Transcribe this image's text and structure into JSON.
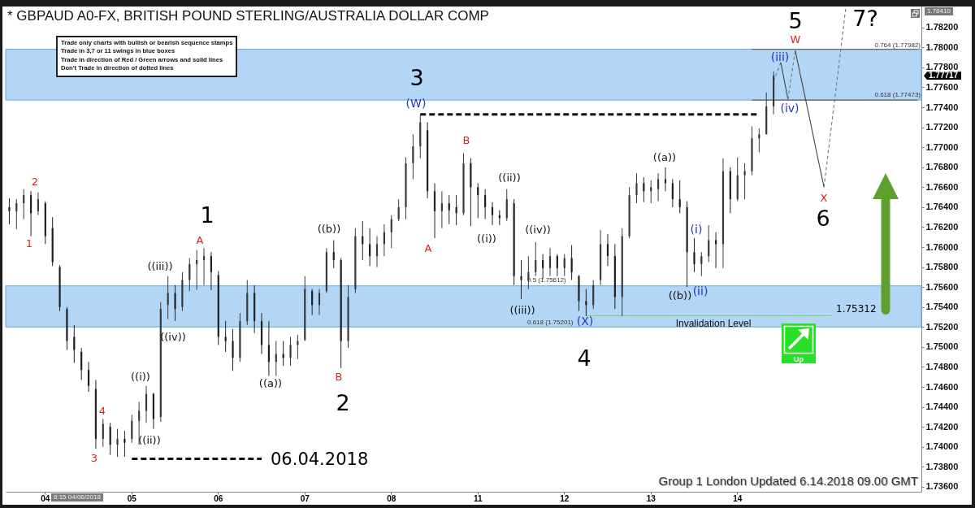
{
  "chart_data": {
    "type": "candlestick",
    "title": "* GBPAUD A0-FX, BRITISH POUND STERLING/AUSTRALIA DOLLAR COMP",
    "categories": [
      null,
      null,
      null,
      null,
      null,
      "04",
      null,
      null,
      null,
      null,
      null,
      null,
      null,
      null,
      null,
      null,
      null,
      "05",
      null,
      null,
      null,
      null,
      null,
      null,
      null,
      null,
      null,
      null,
      null,
      "06",
      null,
      null,
      null,
      null,
      null,
      null,
      null,
      null,
      null,
      null,
      null,
      "07",
      null,
      null,
      null,
      null,
      null,
      null,
      null,
      null,
      null,
      null,
      null,
      "08",
      null,
      null,
      null,
      null,
      null,
      null,
      null,
      null,
      null,
      null,
      null,
      "11",
      null,
      null,
      null,
      null,
      null,
      null,
      null,
      null,
      null,
      null,
      null,
      "12",
      null,
      null,
      null,
      null,
      null,
      null,
      null,
      null,
      null,
      null,
      null,
      "13",
      null,
      null,
      null,
      null,
      null,
      null,
      null,
      null,
      null,
      null,
      null,
      "14",
      null,
      null,
      null,
      null,
      null,
      null,
      null,
      null,
      null,
      null,
      null,
      null,
      null,
      null,
      null,
      null,
      null,
      null,
      null,
      null,
      null,
      null,
      null,
      null,
      null
    ],
    "ohlc": [
      [
        1.764,
        1.7649,
        1.7623,
        1.7636
      ],
      [
        1.7636,
        1.7648,
        1.7618,
        1.7644
      ],
      [
        1.7644,
        1.7658,
        1.7628,
        1.7652
      ],
      [
        1.7652,
        1.7656,
        1.7611,
        1.7634
      ],
      [
        1.7636,
        1.7655,
        1.7632,
        1.7648
      ],
      [
        1.7644,
        1.7646,
        1.7603,
        1.7611
      ],
      [
        1.7619,
        1.763,
        1.7581,
        1.7585
      ],
      [
        1.758,
        1.7582,
        1.7536,
        1.754
      ],
      [
        1.7538,
        1.754,
        1.7497,
        1.7506
      ],
      [
        1.751,
        1.7522,
        1.7484,
        1.7497
      ],
      [
        1.7495,
        1.7499,
        1.7467,
        1.7477
      ],
      [
        1.7477,
        1.7485,
        1.7455,
        1.7461
      ],
      [
        1.7458,
        1.7467,
        1.7398,
        1.7408
      ],
      [
        1.7408,
        1.7428,
        1.74,
        1.7423
      ],
      [
        1.742,
        1.7424,
        1.7392,
        1.7402
      ],
      [
        1.7402,
        1.7418,
        1.739,
        1.7408
      ],
      [
        1.7408,
        1.7416,
        1.739,
        1.7404
      ],
      [
        1.7408,
        1.7432,
        1.7404,
        1.7426
      ],
      [
        1.7426,
        1.7445,
        1.7402,
        1.7436
      ],
      [
        1.7436,
        1.7461,
        1.7424,
        1.7453
      ],
      [
        1.7453,
        1.7454,
        1.7418,
        1.7428
      ],
      [
        1.743,
        1.7545,
        1.7425,
        1.7538
      ],
      [
        1.7542,
        1.7571,
        1.7528,
        1.7554
      ],
      [
        1.7554,
        1.7562,
        1.7526,
        1.7538
      ],
      [
        1.754,
        1.7575,
        1.7536,
        1.7567
      ],
      [
        1.7567,
        1.7589,
        1.7556,
        1.7583
      ],
      [
        1.7583,
        1.7597,
        1.7557,
        1.7587
      ],
      [
        1.7587,
        1.7599,
        1.7562,
        1.7591
      ],
      [
        1.7591,
        1.7595,
        1.7557,
        1.7575
      ],
      [
        1.7572,
        1.7576,
        1.7502,
        1.751
      ],
      [
        1.751,
        1.7526,
        1.7495,
        1.7506
      ],
      [
        1.7506,
        1.7518,
        1.7476,
        1.7489
      ],
      [
        1.7489,
        1.7534,
        1.7485,
        1.7526
      ],
      [
        1.7526,
        1.7567,
        1.7522,
        1.7554
      ],
      [
        1.7554,
        1.7562,
        1.7514,
        1.7526
      ],
      [
        1.7526,
        1.7534,
        1.7493,
        1.7502
      ],
      [
        1.7502,
        1.7526,
        1.7471,
        1.7485
      ],
      [
        1.7485,
        1.7506,
        1.7471,
        1.7493
      ],
      [
        1.7493,
        1.7506,
        1.7481,
        1.7489
      ],
      [
        1.7489,
        1.751,
        1.7481,
        1.7502
      ],
      [
        1.7502,
        1.7512,
        1.7488,
        1.7506
      ],
      [
        1.7507,
        1.7571,
        1.7506,
        1.7558
      ],
      [
        1.7556,
        1.7558,
        1.7532,
        1.7542
      ],
      [
        1.7542,
        1.7558,
        1.7532,
        1.7554
      ],
      [
        1.7556,
        1.7599,
        1.7554,
        1.7595
      ],
      [
        1.7595,
        1.7607,
        1.7579,
        1.7587
      ],
      [
        1.7587,
        1.7589,
        1.7479,
        1.7506
      ],
      [
        1.7506,
        1.7562,
        1.7499,
        1.755
      ],
      [
        1.7558,
        1.7619,
        1.7554,
        1.7611
      ],
      [
        1.7611,
        1.7626,
        1.7587,
        1.7603
      ],
      [
        1.7603,
        1.7619,
        1.7581,
        1.7591
      ],
      [
        1.7591,
        1.7611,
        1.758,
        1.7603
      ],
      [
        1.7603,
        1.7623,
        1.7591,
        1.7615
      ],
      [
        1.7615,
        1.7632,
        1.7599,
        1.7628
      ],
      [
        1.7628,
        1.7648,
        1.7626,
        1.764
      ],
      [
        1.764,
        1.769,
        1.7628,
        1.7684
      ],
      [
        1.7684,
        1.7713,
        1.7668,
        1.7701
      ],
      [
        1.7701,
        1.7733,
        1.7689,
        1.7725
      ],
      [
        1.7717,
        1.7725,
        1.7649,
        1.7656
      ],
      [
        1.7656,
        1.7664,
        1.7609,
        1.7636
      ],
      [
        1.7636,
        1.7656,
        1.7619,
        1.7644
      ],
      [
        1.7644,
        1.7652,
        1.7623,
        1.7637
      ],
      [
        1.764,
        1.7652,
        1.7622,
        1.7634
      ],
      [
        1.7634,
        1.7694,
        1.7632,
        1.7684
      ],
      [
        1.7684,
        1.7689,
        1.7621,
        1.766
      ],
      [
        1.766,
        1.7664,
        1.7629,
        1.7652
      ],
      [
        1.7652,
        1.7658,
        1.7628,
        1.764
      ],
      [
        1.764,
        1.7645,
        1.7622,
        1.7632
      ],
      [
        1.7632,
        1.7637,
        1.7622,
        1.7629
      ],
      [
        1.7629,
        1.7658,
        1.7626,
        1.7648
      ],
      [
        1.7644,
        1.7648,
        1.7562,
        1.7571
      ],
      [
        1.7571,
        1.7587,
        1.7548,
        1.7567
      ],
      [
        1.7567,
        1.7591,
        1.7558,
        1.7575
      ],
      [
        1.7575,
        1.7605,
        1.7571,
        1.7587
      ],
      [
        1.7587,
        1.7593,
        1.7568,
        1.7579
      ],
      [
        1.7579,
        1.7599,
        1.7571,
        1.7591
      ],
      [
        1.7591,
        1.7593,
        1.7571,
        1.7579
      ],
      [
        1.7579,
        1.7593,
        1.7571,
        1.7589
      ],
      [
        1.7589,
        1.7602,
        1.7567,
        1.7575
      ],
      [
        1.7571,
        1.7572,
        1.7536,
        1.7546
      ],
      [
        1.7546,
        1.7558,
        1.7531,
        1.7542
      ],
      [
        1.7542,
        1.7567,
        1.7538,
        1.7562
      ],
      [
        1.7567,
        1.7617,
        1.7562,
        1.7603
      ],
      [
        1.7603,
        1.7613,
        1.7581,
        1.7591
      ],
      [
        1.7591,
        1.7603,
        1.7538,
        1.755
      ],
      [
        1.755,
        1.7619,
        1.7531,
        1.7611
      ],
      [
        1.7611,
        1.766,
        1.7609,
        1.7652
      ],
      [
        1.7652,
        1.7674,
        1.7644,
        1.7664
      ],
      [
        1.7664,
        1.767,
        1.7645,
        1.7656
      ],
      [
        1.7656,
        1.7667,
        1.7644,
        1.766
      ],
      [
        1.7658,
        1.7674,
        1.7646,
        1.7668
      ],
      [
        1.7668,
        1.768,
        1.7656,
        1.7664
      ],
      [
        1.7664,
        1.7668,
        1.764,
        1.7648
      ],
      [
        1.7648,
        1.7667,
        1.7634,
        1.764
      ],
      [
        1.764,
        1.7646,
        1.756,
        1.7595
      ],
      [
        1.7595,
        1.7609,
        1.7575,
        1.7583
      ],
      [
        1.7583,
        1.7595,
        1.7571,
        1.7591
      ],
      [
        1.7591,
        1.7622,
        1.7585,
        1.7607
      ],
      [
        1.7607,
        1.7615,
        1.7579,
        1.7603
      ],
      [
        1.7603,
        1.7689,
        1.7579,
        1.7676
      ],
      [
        1.7676,
        1.768,
        1.7634,
        1.7648
      ],
      [
        1.7648,
        1.769,
        1.7646,
        1.7672
      ],
      [
        1.7672,
        1.7684,
        1.7648,
        1.7676
      ],
      [
        1.7676,
        1.7721,
        1.7672,
        1.7709
      ],
      [
        1.7709,
        1.7719,
        1.7695,
        1.7713
      ],
      [
        1.7713,
        1.7755,
        1.7713,
        1.7741
      ],
      [
        1.7741,
        1.7776,
        1.7733,
        1.77717
      ],
      null,
      null,
      null,
      null,
      null,
      null,
      null,
      null,
      null,
      null,
      null,
      null,
      null,
      null,
      null,
      null,
      null,
      null,
      null,
      null
    ],
    "colors": [
      "#202020",
      "#3a3a3a",
      "#3a3a3a",
      "#202020",
      "#3a3a3a",
      "#202020",
      "#202020",
      "#202020",
      "#202020",
      "#202020",
      "#202020",
      "#202020",
      "#202020",
      "#3a3a3a",
      "#202020",
      "#3a3a3a",
      "#202020",
      "#3a3a3a",
      "#3a3a3a",
      "#3a3a3a",
      "#202020",
      "#3a3a3a",
      "#3a3a3a",
      "#202020",
      "#3a3a3a",
      "#3a3a3a",
      "#3a3a3a",
      "#3a3a3a",
      "#202020",
      "#202020",
      "#202020",
      "#202020",
      "#3a3a3a",
      "#3a3a3a",
      "#202020",
      "#202020",
      "#202020",
      "#3a3a3a",
      "#202020",
      "#3a3a3a",
      "#3a3a3a",
      "#3a3a3a",
      "#202020",
      "#3a3a3a",
      "#3a3a3a",
      "#202020",
      "#202020",
      "#3a3a3a",
      "#3a3a3a",
      "#202020",
      "#202020",
      "#3a3a3a",
      "#3a3a3a",
      "#3a3a3a",
      "#3a3a3a",
      "#3a3a3a",
      "#3a3a3a",
      "#3a3a3a",
      "#202020",
      "#202020",
      "#3a3a3a",
      "#202020",
      "#202020",
      "#3a3a3a",
      "#202020",
      "#202020",
      "#202020",
      "#202020",
      "#202020",
      "#3a3a3a",
      "#202020",
      "#202020",
      "#3a3a3a",
      "#3a3a3a",
      "#202020",
      "#3a3a3a",
      "#202020",
      "#3a3a3a",
      "#202020",
      "#202020",
      "#202020",
      "#3a3a3a",
      "#3a3a3a",
      "#202020",
      "#202020",
      "#3a3a3a",
      "#3a3a3a",
      "#3a3a3a",
      "#202020",
      "#3a3a3a",
      "#3a3a3a",
      "#202020",
      "#202020",
      "#202020",
      "#202020",
      "#202020",
      "#3a3a3a",
      "#3a3a3a",
      "#202020",
      "#3a3a3a",
      "#202020",
      "#3a3a3a",
      "#3a3a3a",
      "#3a3a3a",
      "#3a3a3a",
      "#3a3a3a",
      "#3a3a3a",
      null,
      null,
      null,
      null,
      null,
      null,
      null,
      null,
      null,
      null,
      null,
      null,
      null,
      null,
      null,
      null,
      null,
      null,
      null,
      null
    ],
    "series": [
      {
        "type": "line",
        "color": "#111111",
        "line_style": "dashed",
        "values": [
          null,
          null,
          null,
          null,
          null,
          null,
          null,
          null,
          null,
          null,
          null,
          null,
          null,
          null,
          null,
          null,
          null,
          null,
          null,
          null,
          null,
          null,
          null,
          null,
          null,
          null,
          null,
          null,
          null,
          null,
          null,
          null,
          null,
          null,
          null,
          null,
          null,
          null,
          null,
          null,
          null,
          null,
          null,
          null,
          null,
          null,
          null,
          null,
          null,
          null,
          null,
          null,
          null,
          null,
          null,
          null,
          null,
          1.7733,
          1.7733,
          1.7733,
          1.7733,
          1.7733,
          1.7733,
          1.7733,
          1.7733,
          1.7733,
          1.7733,
          1.7733,
          1.7733,
          1.7733,
          1.7733,
          1.7733,
          1.7733,
          1.7733,
          1.7733,
          1.7733,
          1.7733,
          1.7733,
          1.7733,
          1.7733,
          1.7733,
          1.7733,
          1.7733,
          1.7733,
          1.7733,
          1.7733,
          1.7733,
          1.7733,
          1.7733,
          1.7733,
          1.7733,
          1.7733,
          1.7733,
          1.7733,
          1.7733,
          1.7733,
          1.7733,
          1.7733,
          1.7733,
          1.7733,
          1.7733,
          1.7733,
          1.7733,
          1.7733,
          1.7733,
          null,
          null,
          null,
          null,
          null,
          null,
          null,
          null,
          null,
          null,
          null,
          null,
          null,
          null,
          null,
          null,
          null,
          null,
          null,
          null,
          null,
          null
        ]
      },
      {
        "type": "line",
        "color": "#111111",
        "line_style": "dashed",
        "values": [
          null,
          null,
          null,
          null,
          null,
          null,
          null,
          null,
          null,
          null,
          null,
          null,
          null,
          null,
          null,
          null,
          null,
          1.7388,
          1.7388,
          1.7388,
          1.7388,
          1.7388,
          1.7388,
          1.7388,
          1.7388,
          1.7388,
          1.7388,
          1.7388,
          1.7388,
          1.7388,
          1.7388,
          1.7388,
          1.7388,
          1.7388,
          1.7388,
          1.7388,
          null,
          null,
          null,
          null,
          null,
          null,
          null,
          null,
          null,
          null,
          null,
          null,
          null,
          null,
          null,
          null,
          null,
          null,
          null,
          null,
          null,
          null,
          null,
          null,
          null,
          null,
          null,
          null,
          null,
          null,
          null,
          null,
          null,
          null,
          null,
          null,
          null,
          null,
          null,
          null,
          null,
          null,
          null,
          null,
          null,
          null,
          null,
          null,
          null,
          null,
          null,
          null,
          null,
          null,
          null,
          null,
          null,
          null,
          null,
          null,
          null,
          null,
          null,
          null,
          null,
          null,
          null,
          null,
          null,
          null,
          null,
          null,
          null,
          null,
          null,
          null,
          null,
          null,
          null,
          null,
          null,
          null,
          null,
          null,
          null,
          null,
          null,
          null,
          null,
          null,
          null
        ]
      },
      {
        "type": "line",
        "color": "#6fd96f",
        "line_style": "solid",
        "values": [
          null,
          null,
          null,
          null,
          null,
          null,
          null,
          null,
          null,
          null,
          null,
          null,
          null,
          null,
          null,
          null,
          null,
          null,
          null,
          null,
          null,
          null,
          null,
          null,
          null,
          null,
          null,
          null,
          null,
          null,
          null,
          null,
          null,
          null,
          null,
          null,
          null,
          null,
          null,
          null,
          null,
          null,
          null,
          null,
          null,
          null,
          null,
          null,
          null,
          null,
          null,
          null,
          null,
          null,
          null,
          null,
          null,
          null,
          null,
          null,
          null,
          null,
          null,
          null,
          null,
          null,
          null,
          null,
          null,
          null,
          null,
          null,
          null,
          null,
          null,
          null,
          null,
          null,
          null,
          null,
          1.75312,
          1.75312,
          1.75312,
          1.75312,
          1.75312,
          1.75312,
          1.75312,
          1.75312,
          1.75312,
          1.75312,
          1.75312,
          1.75312,
          1.75312,
          1.75312,
          1.75312,
          1.75312,
          1.75312,
          1.75312,
          1.75312,
          1.75312,
          1.75312,
          1.75312,
          1.75312,
          1.75312,
          1.75312,
          1.75312,
          1.75312,
          1.75312,
          1.75312,
          1.75312,
          1.75312,
          1.75312,
          1.75312,
          1.75312,
          1.75312,
          null,
          null,
          null,
          null,
          null,
          null,
          null,
          null,
          null,
          null,
          null,
          null
        ]
      },
      {
        "type": "line",
        "color": "#666666",
        "line_style": "solid",
        "values": [
          null,
          null,
          null,
          null,
          null,
          null,
          null,
          null,
          null,
          null,
          null,
          null,
          null,
          null,
          null,
          null,
          null,
          null,
          null,
          null,
          null,
          null,
          null,
          null,
          null,
          null,
          null,
          null,
          null,
          null,
          null,
          null,
          null,
          null,
          null,
          null,
          null,
          null,
          null,
          null,
          null,
          null,
          null,
          null,
          null,
          null,
          null,
          null,
          null,
          null,
          null,
          null,
          null,
          null,
          null,
          null,
          null,
          null,
          null,
          null,
          null,
          null,
          null,
          null,
          null,
          null,
          null,
          null,
          null,
          null,
          null,
          null,
          null,
          null,
          null,
          null,
          null,
          null,
          null,
          null,
          null,
          null,
          null,
          null,
          null,
          null,
          null,
          null,
          null,
          null,
          null,
          null,
          null,
          null,
          null,
          null,
          null,
          null,
          null,
          null,
          null,
          null,
          null,
          1.77982,
          1.77982,
          1.77982,
          1.77982,
          1.77982,
          1.77982,
          1.77982,
          1.77982,
          1.77982,
          1.77982,
          1.77982,
          1.77982,
          1.77982,
          1.77982,
          1.77982,
          1.77982,
          1.77982,
          1.77982,
          1.77982,
          1.77982,
          1.77982,
          1.77982,
          1.77982,
          1.77982
        ]
      },
      {
        "type": "line",
        "color": "#666666",
        "line_style": "solid",
        "values": [
          null,
          null,
          null,
          null,
          null,
          null,
          null,
          null,
          null,
          null,
          null,
          null,
          null,
          null,
          null,
          null,
          null,
          null,
          null,
          null,
          null,
          null,
          null,
          null,
          null,
          null,
          null,
          null,
          null,
          null,
          null,
          null,
          null,
          null,
          null,
          null,
          null,
          null,
          null,
          null,
          null,
          null,
          null,
          null,
          null,
          null,
          null,
          null,
          null,
          null,
          null,
          null,
          null,
          null,
          null,
          null,
          null,
          null,
          null,
          null,
          null,
          null,
          null,
          null,
          null,
          null,
          null,
          null,
          null,
          null,
          null,
          null,
          null,
          null,
          null,
          null,
          null,
          null,
          null,
          null,
          null,
          null,
          null,
          null,
          null,
          null,
          null,
          null,
          null,
          null,
          null,
          null,
          null,
          null,
          null,
          null,
          null,
          null,
          null,
          null,
          null,
          null,
          null,
          1.77473,
          1.77473,
          1.77473,
          1.77473,
          1.77473,
          1.77473,
          1.77473,
          1.77473,
          1.77473,
          1.77473,
          1.77473,
          1.77473,
          1.77473,
          1.77473,
          1.77473,
          1.77473,
          1.77473,
          1.77473,
          1.77473,
          1.77473,
          1.77473,
          1.77473,
          1.77473,
          1.77473
        ]
      },
      {
        "type": "line",
        "color": "#777777",
        "line_style": "dashed",
        "values": [
          null,
          null,
          null,
          null,
          null,
          null,
          null,
          null,
          null,
          null,
          null,
          null,
          null,
          null,
          null,
          null,
          null,
          null,
          null,
          null,
          null,
          null,
          null,
          null,
          null,
          null,
          null,
          null,
          null,
          null,
          null,
          null,
          null,
          null,
          null,
          null,
          null,
          null,
          null,
          null,
          null,
          null,
          null,
          null,
          null,
          null,
          null,
          null,
          null,
          null,
          null,
          null,
          null,
          null,
          null,
          null,
          null,
          null,
          null,
          null,
          null,
          null,
          null,
          null,
          null,
          null,
          null,
          null,
          null,
          null,
          null,
          null,
          null,
          null,
          null,
          null,
          null,
          null,
          null,
          null,
          null,
          null,
          null,
          null,
          null,
          null,
          null,
          null,
          null,
          null,
          null,
          null,
          null,
          null,
          null,
          null,
          null,
          null,
          null,
          null,
          null,
          null,
          null,
          null,
          null,
          null,
          1.7766,
          1.7785,
          null,
          null,
          null,
          null,
          null,
          null,
          null,
          null,
          null,
          null,
          null,
          null,
          null,
          null,
          null,
          null,
          null,
          null,
          null
        ]
      },
      {
        "type": "line",
        "color": "#444444",
        "line_style": "solid",
        "values": [
          null,
          null,
          null,
          null,
          null,
          null,
          null,
          null,
          null,
          null,
          null,
          null,
          null,
          null,
          null,
          null,
          null,
          null,
          null,
          null,
          null,
          null,
          null,
          null,
          null,
          null,
          null,
          null,
          null,
          null,
          null,
          null,
          null,
          null,
          null,
          null,
          null,
          null,
          null,
          null,
          null,
          null,
          null,
          null,
          null,
          null,
          null,
          null,
          null,
          null,
          null,
          null,
          null,
          null,
          null,
          null,
          null,
          null,
          null,
          null,
          null,
          null,
          null,
          null,
          null,
          null,
          null,
          null,
          null,
          null,
          null,
          null,
          null,
          null,
          null,
          null,
          null,
          null,
          null,
          null,
          null,
          null,
          null,
          null,
          null,
          null,
          null,
          null,
          null,
          null,
          null,
          null,
          null,
          null,
          null,
          null,
          null,
          null,
          null,
          null,
          null,
          null,
          null,
          null,
          null,
          null,
          null,
          1.7785,
          1.7748,
          null,
          null,
          null,
          null,
          null,
          null,
          null,
          null,
          null,
          null,
          null,
          null,
          null,
          null,
          null,
          null,
          null,
          null
        ]
      },
      {
        "type": "line",
        "color": "#777777",
        "line_style": "dashed",
        "values": [
          null,
          null,
          null,
          null,
          null,
          null,
          null,
          null,
          null,
          null,
          null,
          null,
          null,
          null,
          null,
          null,
          null,
          null,
          null,
          null,
          null,
          null,
          null,
          null,
          null,
          null,
          null,
          null,
          null,
          null,
          null,
          null,
          null,
          null,
          null,
          null,
          null,
          null,
          null,
          null,
          null,
          null,
          null,
          null,
          null,
          null,
          null,
          null,
          null,
          null,
          null,
          null,
          null,
          null,
          null,
          null,
          null,
          null,
          null,
          null,
          null,
          null,
          null,
          null,
          null,
          null,
          null,
          null,
          null,
          null,
          null,
          null,
          null,
          null,
          null,
          null,
          null,
          null,
          null,
          null,
          null,
          null,
          null,
          null,
          null,
          null,
          null,
          null,
          null,
          null,
          null,
          null,
          null,
          null,
          null,
          null,
          null,
          null,
          null,
          null,
          null,
          null,
          null,
          null,
          null,
          null,
          null,
          null,
          1.7748,
          1.7797,
          null,
          null,
          null,
          null,
          null,
          null,
          null,
          null,
          null,
          null,
          null,
          null,
          null,
          null,
          null,
          null,
          null
        ]
      },
      {
        "type": "line",
        "color": "#444444",
        "line_style": "solid",
        "values": [
          null,
          null,
          null,
          null,
          null,
          null,
          null,
          null,
          null,
          null,
          null,
          null,
          null,
          null,
          null,
          null,
          null,
          null,
          null,
          null,
          null,
          null,
          null,
          null,
          null,
          null,
          null,
          null,
          null,
          null,
          null,
          null,
          null,
          null,
          null,
          null,
          null,
          null,
          null,
          null,
          null,
          null,
          null,
          null,
          null,
          null,
          null,
          null,
          null,
          null,
          null,
          null,
          null,
          null,
          null,
          null,
          null,
          null,
          null,
          null,
          null,
          null,
          null,
          null,
          null,
          null,
          null,
          null,
          null,
          null,
          null,
          null,
          null,
          null,
          null,
          null,
          null,
          null,
          null,
          null,
          null,
          null,
          null,
          null,
          null,
          null,
          null,
          null,
          null,
          null,
          null,
          null,
          null,
          null,
          null,
          null,
          null,
          null,
          null,
          null,
          null,
          null,
          null,
          null,
          null,
          null,
          null,
          null,
          null,
          1.7797,
          1.7763,
          1.7729,
          1.7694,
          1.766,
          null,
          null,
          null,
          null,
          null,
          null,
          null,
          null,
          null,
          null,
          null,
          null,
          null
        ]
      },
      {
        "type": "line",
        "color": "#777777",
        "line_style": "dashed",
        "values": [
          null,
          null,
          null,
          null,
          null,
          null,
          null,
          null,
          null,
          null,
          null,
          null,
          null,
          null,
          null,
          null,
          null,
          null,
          null,
          null,
          null,
          null,
          null,
          null,
          null,
          null,
          null,
          null,
          null,
          null,
          null,
          null,
          null,
          null,
          null,
          null,
          null,
          null,
          null,
          null,
          null,
          null,
          null,
          null,
          null,
          null,
          null,
          null,
          null,
          null,
          null,
          null,
          null,
          null,
          null,
          null,
          null,
          null,
          null,
          null,
          null,
          null,
          null,
          null,
          null,
          null,
          null,
          null,
          null,
          null,
          null,
          null,
          null,
          null,
          null,
          null,
          null,
          null,
          null,
          null,
          null,
          null,
          null,
          null,
          null,
          null,
          null,
          null,
          null,
          null,
          null,
          null,
          null,
          null,
          null,
          null,
          null,
          null,
          null,
          null,
          null,
          null,
          null,
          null,
          null,
          null,
          null,
          null,
          null,
          null,
          null,
          null,
          null,
          1.766,
          1.772,
          1.7779,
          1.7839,
          null,
          null,
          null,
          null,
          null,
          null,
          null,
          null,
          null,
          null
        ]
      }
    ],
    "bands": [
      {
        "axis": "y",
        "from": 1.77473,
        "to": 1.77982,
        "color": "#a6cff5"
      },
      {
        "axis": "y",
        "from": 1.75201,
        "to": 1.75612,
        "color": "#a6cff5"
      }
    ],
    "ylim": [
      1.7355,
      1.7841
    ],
    "yticks": [
      {
        "value": 1.736,
        "label": "1.73600"
      },
      {
        "value": 1.738,
        "label": "1.73800"
      },
      {
        "value": 1.74,
        "label": "1.74000"
      },
      {
        "value": 1.742,
        "label": "1.74200"
      },
      {
        "value": 1.744,
        "label": "1.74400"
      },
      {
        "value": 1.746,
        "label": "1.74600"
      },
      {
        "value": 1.748,
        "label": "1.74800"
      },
      {
        "value": 1.75,
        "label": "1.75000"
      },
      {
        "value": 1.752,
        "label": "1.75200"
      },
      {
        "value": 1.754,
        "label": "1.75400"
      },
      {
        "value": 1.756,
        "label": "1.75600"
      },
      {
        "value": 1.758,
        "label": "1.75800"
      },
      {
        "value": 1.76,
        "label": "1.76000"
      },
      {
        "value": 1.762,
        "label": "1.76200"
      },
      {
        "value": 1.764,
        "label": "1.76400"
      },
      {
        "value": 1.766,
        "label": "1.76600"
      },
      {
        "value": 1.768,
        "label": "1.76800"
      },
      {
        "value": 1.77,
        "label": "1.77000"
      },
      {
        "value": 1.772,
        "label": "1.77200"
      },
      {
        "value": 1.774,
        "label": "1.77400"
      },
      {
        "value": 1.776,
        "label": "1.77600"
      },
      {
        "value": 1.778,
        "label": "1.77800"
      },
      {
        "value": 1.78,
        "label": "1.78000"
      },
      {
        "value": 1.782,
        "label": "1.78200"
      }
    ],
    "annotations": [
      "Trade only charts with bullish or bearish sequence stamps",
      "Trade in 3,7 or 11 swings in blue boxes",
      "Trade in direction of Red / Green arrows and solid lines",
      "Don't Trade in direction of dotted lines",
      "Group 1 London Updated 6.14.2018 09.00 GMT",
      "Up",
      "1",
      "2",
      "3",
      "4",
      "5",
      "6",
      "7?",
      "2",
      "1",
      "3",
      "4",
      "A",
      "B",
      "A",
      "B",
      "W",
      "X",
      "(W)",
      "(X)",
      "(i)",
      "(ii)",
      "(iii)",
      "(iv)",
      "((i))",
      "((ii))",
      "((iii))",
      "((iv))",
      "((a))",
      "((b))",
      "((i))",
      "((ii))",
      "((iii))",
      "((iv))",
      "((a))",
      "((b))",
      "0.764 (1.77982)",
      "0.618 (1.77473)",
      "0.5 (1.75612)",
      "0.618 (1.75201)",
      "06.04.2018",
      "Invalidation Level",
      "1.75312",
      "1.77717",
      "1.78410",
      "8:15 04/06/2018"
    ]
  }
}
